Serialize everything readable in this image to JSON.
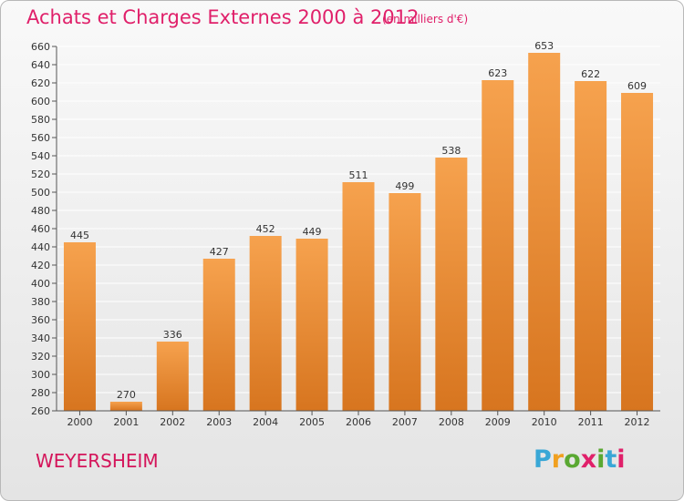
{
  "header": {
    "title": "Achats et Charges Externes 2000 à 2012",
    "subtitle": "(en milliers d'€)"
  },
  "location": "WEYERSHEIM",
  "logo": {
    "letters": [
      "P",
      "r",
      "o",
      "x",
      "i",
      "t",
      "i"
    ]
  },
  "colors": {
    "title": "#e0206a",
    "bar_top": "#f6a24e",
    "bar_bottom": "#d7751f",
    "axis": "#555555",
    "grid": "#ffffff"
  },
  "chart_data": {
    "type": "bar",
    "title": "Achats et Charges Externes 2000 à 2012",
    "subtitle": "(en milliers d'€)",
    "xlabel": "",
    "ylabel": "",
    "categories": [
      "2000",
      "2001",
      "2002",
      "2003",
      "2004",
      "2005",
      "2006",
      "2007",
      "2008",
      "2009",
      "2010",
      "2011",
      "2012"
    ],
    "values": [
      445,
      270,
      336,
      427,
      452,
      449,
      511,
      499,
      538,
      623,
      653,
      622,
      609
    ],
    "ylim": [
      260,
      660
    ],
    "yticks": [
      260,
      280,
      300,
      320,
      340,
      360,
      380,
      400,
      420,
      440,
      460,
      480,
      500,
      520,
      540,
      560,
      580,
      600,
      620,
      640,
      660
    ],
    "grid": true,
    "data_labels": true
  }
}
